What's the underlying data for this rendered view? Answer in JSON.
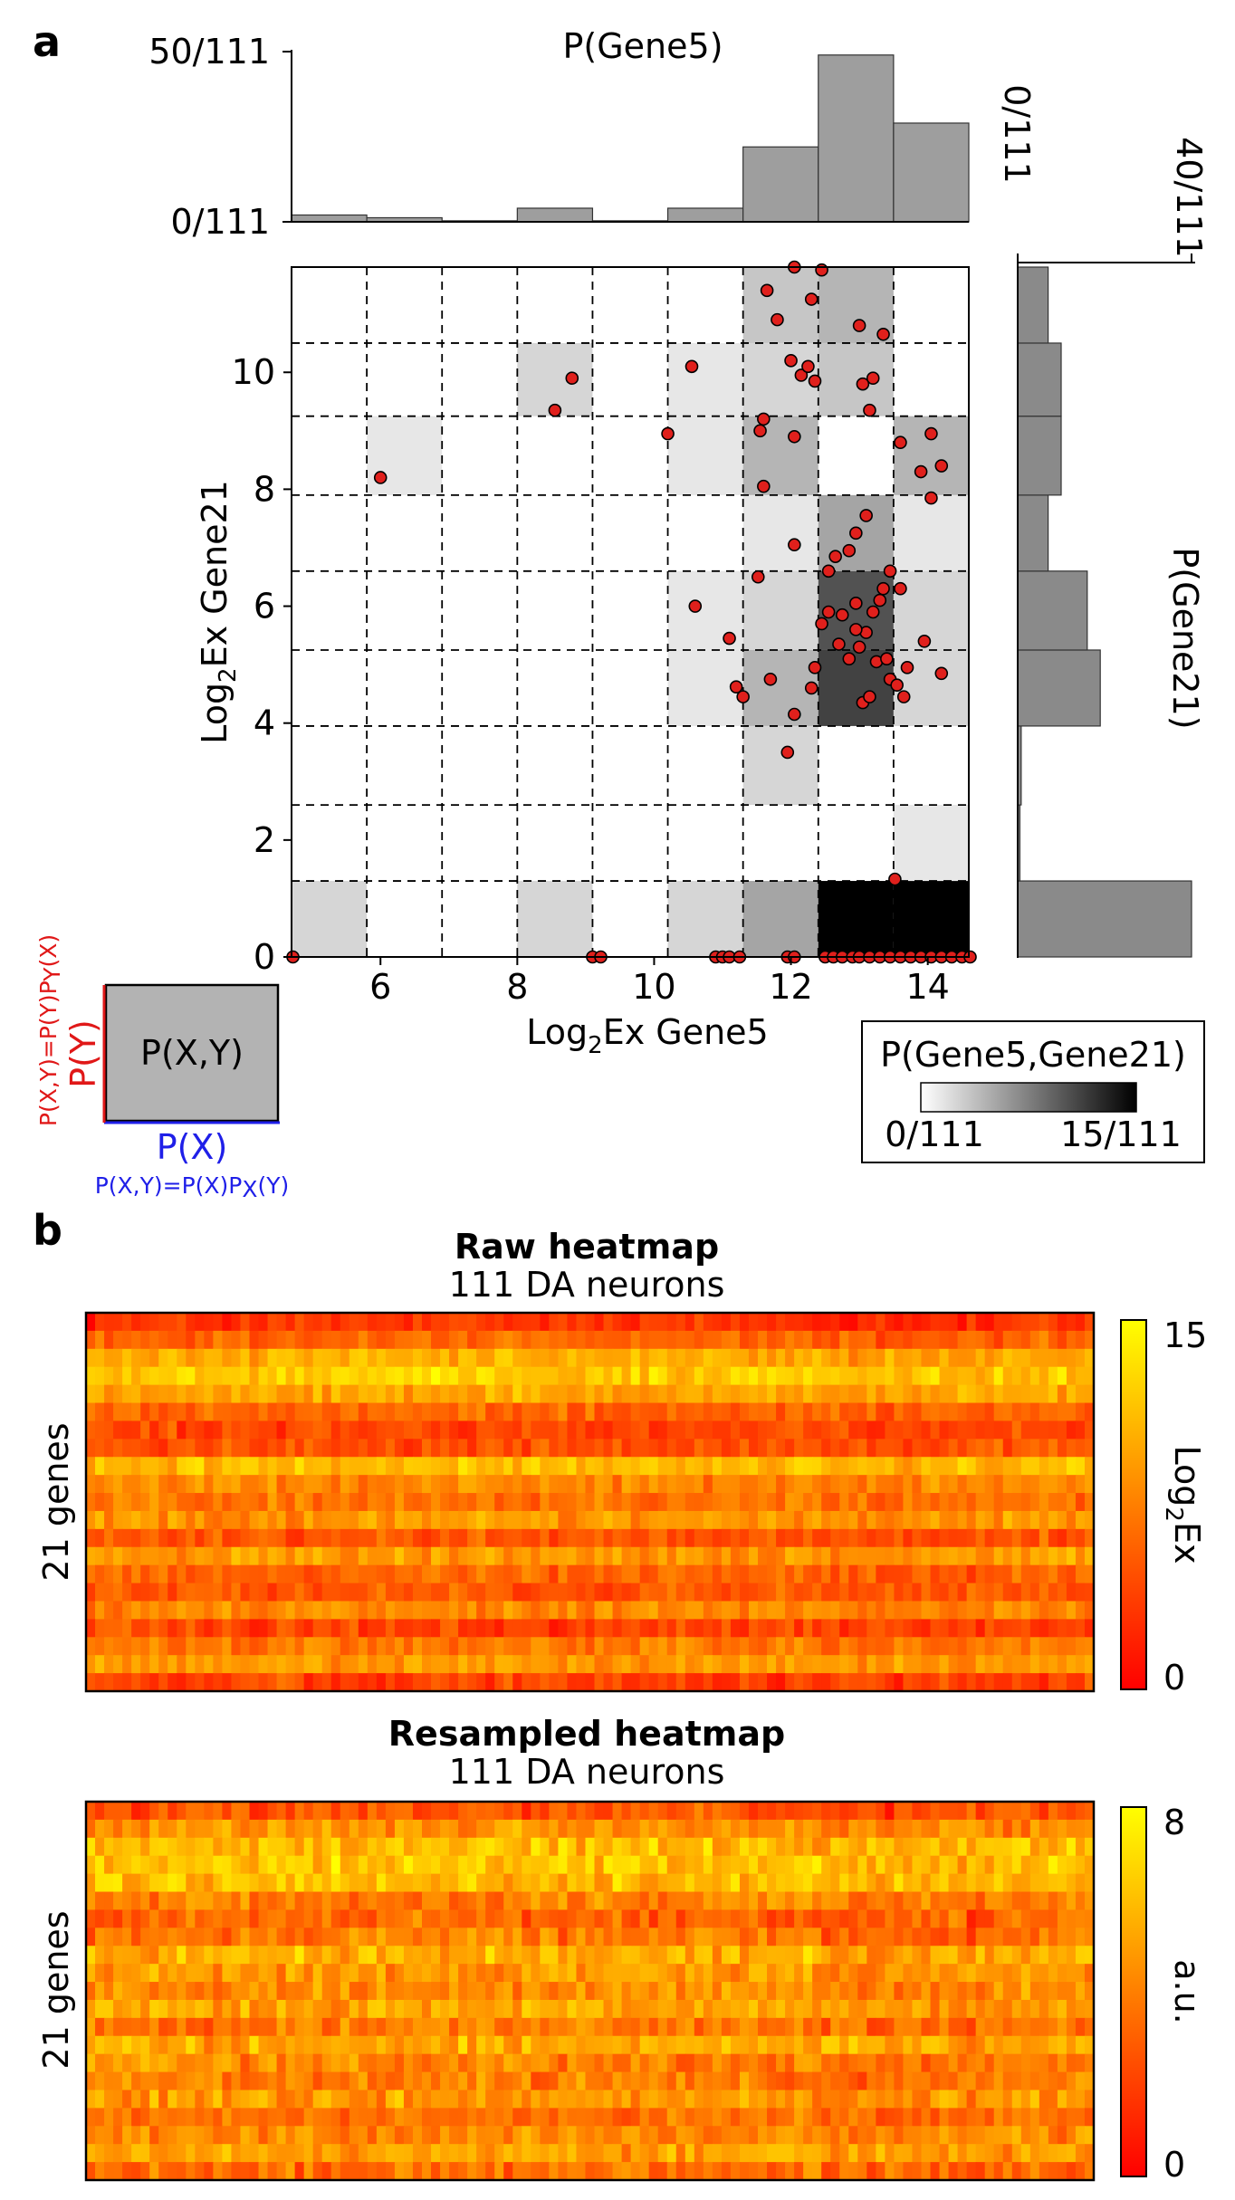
{
  "panel_a": {
    "label": "a",
    "scheme": {
      "box_label": "P(X,Y)",
      "px_label": "P(X)",
      "py_label": "P(Y)",
      "px_formula": "P(X,Y)=P(X)P",
      "px_formula_sub": "X",
      "px_formula_end": "(Y)",
      "py_formula": "P(X,Y)=P(Y)P",
      "py_formula_sub": "Y",
      "py_formula_end": "(X)",
      "colors": {
        "x": "#1f1fe8",
        "y": "#e01818",
        "box": "#b3b3b3"
      }
    }
  },
  "panel_b": {
    "label": "b",
    "raw_title_bold": "Raw heatmap",
    "raw_title_sub": "111 DA neurons",
    "resampled_title_bold": "Resampled heatmap",
    "resampled_title_sub": "111 DA neurons"
  },
  "chart_data": [
    {
      "type": "bar",
      "id": "marginal-x",
      "title": "P(Gene5)",
      "ytick_labels": [
        "50/111",
        "0/111"
      ],
      "ylim": [
        0,
        50
      ],
      "bin_edges": [
        4.7,
        5.8,
        6.9,
        8.0,
        9.1,
        10.2,
        11.3,
        12.4,
        13.5,
        14.6
      ],
      "values": [
        2.0,
        1.2,
        0.3,
        4.0,
        0.3,
        4.0,
        22.0,
        49.0,
        29.0
      ]
    },
    {
      "type": "bar",
      "id": "marginal-y",
      "title": "P(Gene21)",
      "tick_labels": [
        "0/111",
        "40/111"
      ],
      "xlim": [
        0,
        40
      ],
      "bin_edges": [
        0,
        1.3,
        2.6,
        3.95,
        5.25,
        6.6,
        7.9,
        9.25,
        10.5,
        11.8
      ],
      "values": [
        40,
        0.5,
        0.8,
        19,
        16,
        7,
        10,
        10,
        7
      ]
    },
    {
      "type": "heatmap",
      "id": "joint-histogram",
      "xlabel": "Log",
      "xlabel_sub": "2",
      "xlabel_end": "Ex Gene5",
      "ylabel": "Log",
      "ylabel_sub": "2",
      "ylabel_end": "Ex Gene21",
      "xlim": [
        4.7,
        14.6
      ],
      "ylim": [
        0,
        11.8
      ],
      "xticks": [
        6,
        8,
        10,
        12,
        14
      ],
      "yticks": [
        0,
        2,
        4,
        6,
        8,
        10
      ],
      "x_edges": [
        4.7,
        5.8,
        6.9,
        8.0,
        9.1,
        10.2,
        11.3,
        12.4,
        13.5,
        14.6
      ],
      "y_edges": [
        0,
        1.3,
        2.6,
        3.95,
        5.25,
        6.6,
        7.9,
        9.25,
        10.5,
        11.8
      ],
      "counts": [
        [
          2,
          0,
          0,
          2,
          0,
          2,
          5,
          15,
          15
        ],
        [
          0,
          0,
          0,
          0,
          0,
          0,
          0,
          0,
          1
        ],
        [
          0,
          0,
          0,
          0,
          0,
          0,
          2,
          0,
          0
        ],
        [
          0,
          0,
          0,
          0,
          0,
          1,
          4,
          11,
          2
        ],
        [
          0,
          0,
          0,
          0,
          0,
          1,
          2,
          10,
          2
        ],
        [
          0,
          0,
          0,
          0,
          0,
          0,
          1,
          5,
          1
        ],
        [
          0,
          1,
          0,
          0,
          0,
          1,
          4,
          0,
          4
        ],
        [
          0,
          0,
          0,
          2,
          0,
          1,
          2,
          3,
          0
        ],
        [
          0,
          0,
          0,
          0,
          0,
          0,
          3,
          4,
          0
        ]
      ],
      "colorbar_title": "P(Gene5,Gene21)",
      "colorbar_tick_labels": [
        "0/111",
        "15/111"
      ],
      "clim": [
        0,
        15
      ],
      "points": [
        [
          4.72,
          0
        ],
        [
          9.1,
          0
        ],
        [
          9.22,
          0
        ],
        [
          10.9,
          0
        ],
        [
          11.0,
          0
        ],
        [
          11.1,
          0
        ],
        [
          11.25,
          0
        ],
        [
          11.95,
          0
        ],
        [
          12.05,
          0
        ],
        [
          12.5,
          0
        ],
        [
          12.62,
          0
        ],
        [
          12.75,
          0
        ],
        [
          12.9,
          0
        ],
        [
          13.0,
          0
        ],
        [
          13.15,
          0
        ],
        [
          13.3,
          0
        ],
        [
          13.45,
          0
        ],
        [
          13.6,
          0
        ],
        [
          13.75,
          0
        ],
        [
          13.9,
          0
        ],
        [
          14.05,
          0
        ],
        [
          14.2,
          0
        ],
        [
          14.35,
          0
        ],
        [
          14.5,
          0
        ],
        [
          14.62,
          0
        ],
        [
          13.52,
          1.33
        ],
        [
          11.95,
          3.5
        ],
        [
          12.05,
          4.15
        ],
        [
          11.7,
          4.75
        ],
        [
          11.2,
          4.62
        ],
        [
          11.3,
          4.45
        ],
        [
          11.1,
          5.45
        ],
        [
          10.6,
          6.0
        ],
        [
          11.52,
          6.5
        ],
        [
          12.3,
          4.6
        ],
        [
          12.35,
          4.95
        ],
        [
          12.45,
          5.7
        ],
        [
          12.55,
          5.9
        ],
        [
          12.7,
          5.35
        ],
        [
          12.85,
          5.1
        ],
        [
          13.0,
          5.3
        ],
        [
          13.05,
          4.35
        ],
        [
          13.15,
          4.45
        ],
        [
          13.25,
          5.05
        ],
        [
          13.35,
          6.3
        ],
        [
          13.45,
          4.75
        ],
        [
          13.55,
          4.65
        ],
        [
          13.65,
          4.45
        ],
        [
          13.7,
          4.95
        ],
        [
          13.2,
          5.9
        ],
        [
          13.1,
          5.55
        ],
        [
          12.95,
          5.6
        ],
        [
          12.75,
          5.85
        ],
        [
          12.55,
          6.6
        ],
        [
          12.65,
          6.85
        ],
        [
          12.85,
          6.95
        ],
        [
          12.95,
          7.25
        ],
        [
          13.1,
          7.55
        ],
        [
          13.6,
          6.3
        ],
        [
          13.45,
          6.6
        ],
        [
          13.3,
          6.1
        ],
        [
          13.4,
          5.1
        ],
        [
          12.95,
          6.05
        ],
        [
          14.2,
          4.85
        ],
        [
          13.95,
          5.4
        ],
        [
          12.05,
          7.05
        ],
        [
          11.6,
          8.05
        ],
        [
          12.05,
          8.9
        ],
        [
          11.6,
          9.2
        ],
        [
          11.55,
          9.0
        ],
        [
          10.2,
          8.95
        ],
        [
          6.0,
          8.2
        ],
        [
          8.55,
          9.35
        ],
        [
          8.8,
          9.9
        ],
        [
          10.55,
          10.1
        ],
        [
          12.0,
          10.2
        ],
        [
          12.15,
          9.95
        ],
        [
          12.25,
          10.1
        ],
        [
          12.35,
          9.85
        ],
        [
          13.05,
          9.8
        ],
        [
          13.2,
          9.9
        ],
        [
          13.15,
          9.35
        ],
        [
          13.0,
          10.8
        ],
        [
          13.35,
          10.65
        ],
        [
          11.8,
          10.9
        ],
        [
          11.65,
          11.4
        ],
        [
          12.05,
          11.8
        ],
        [
          12.3,
          11.25
        ],
        [
          12.45,
          11.75
        ],
        [
          13.9,
          8.3
        ],
        [
          14.05,
          8.95
        ],
        [
          14.2,
          8.4
        ],
        [
          14.05,
          7.85
        ],
        [
          13.6,
          8.8
        ]
      ]
    },
    {
      "type": "heatmap",
      "id": "raw-heatmap",
      "ylabel": "21 genes",
      "rows": 21,
      "cols": 111,
      "colorbar_label": "Log",
      "colorbar_label_sub": "2",
      "colorbar_label_end": "Ex",
      "colorbar_tick_labels": [
        "15",
        "0"
      ],
      "clim": [
        0,
        15
      ],
      "row_means": [
        3,
        6,
        10,
        12,
        10,
        6,
        4,
        5,
        11,
        8,
        7,
        9,
        5,
        9,
        6,
        5,
        8,
        4,
        7,
        9,
        4
      ],
      "row_noise": 3
    },
    {
      "type": "heatmap",
      "id": "resampled-heatmap",
      "ylabel": "21 genes",
      "rows": 21,
      "cols": 111,
      "colorbar_label": "a.u.",
      "colorbar_tick_labels": [
        "8",
        "0"
      ],
      "clim": [
        0,
        8
      ],
      "row_means": [
        2.5,
        4.5,
        5.8,
        6.2,
        5.8,
        4.0,
        3.2,
        3.8,
        5.5,
        4.8,
        4.5,
        5.0,
        3.8,
        5.2,
        4.2,
        3.9,
        4.8,
        3.4,
        4.4,
        5.0,
        3.4
      ],
      "row_noise": 2.0
    }
  ]
}
